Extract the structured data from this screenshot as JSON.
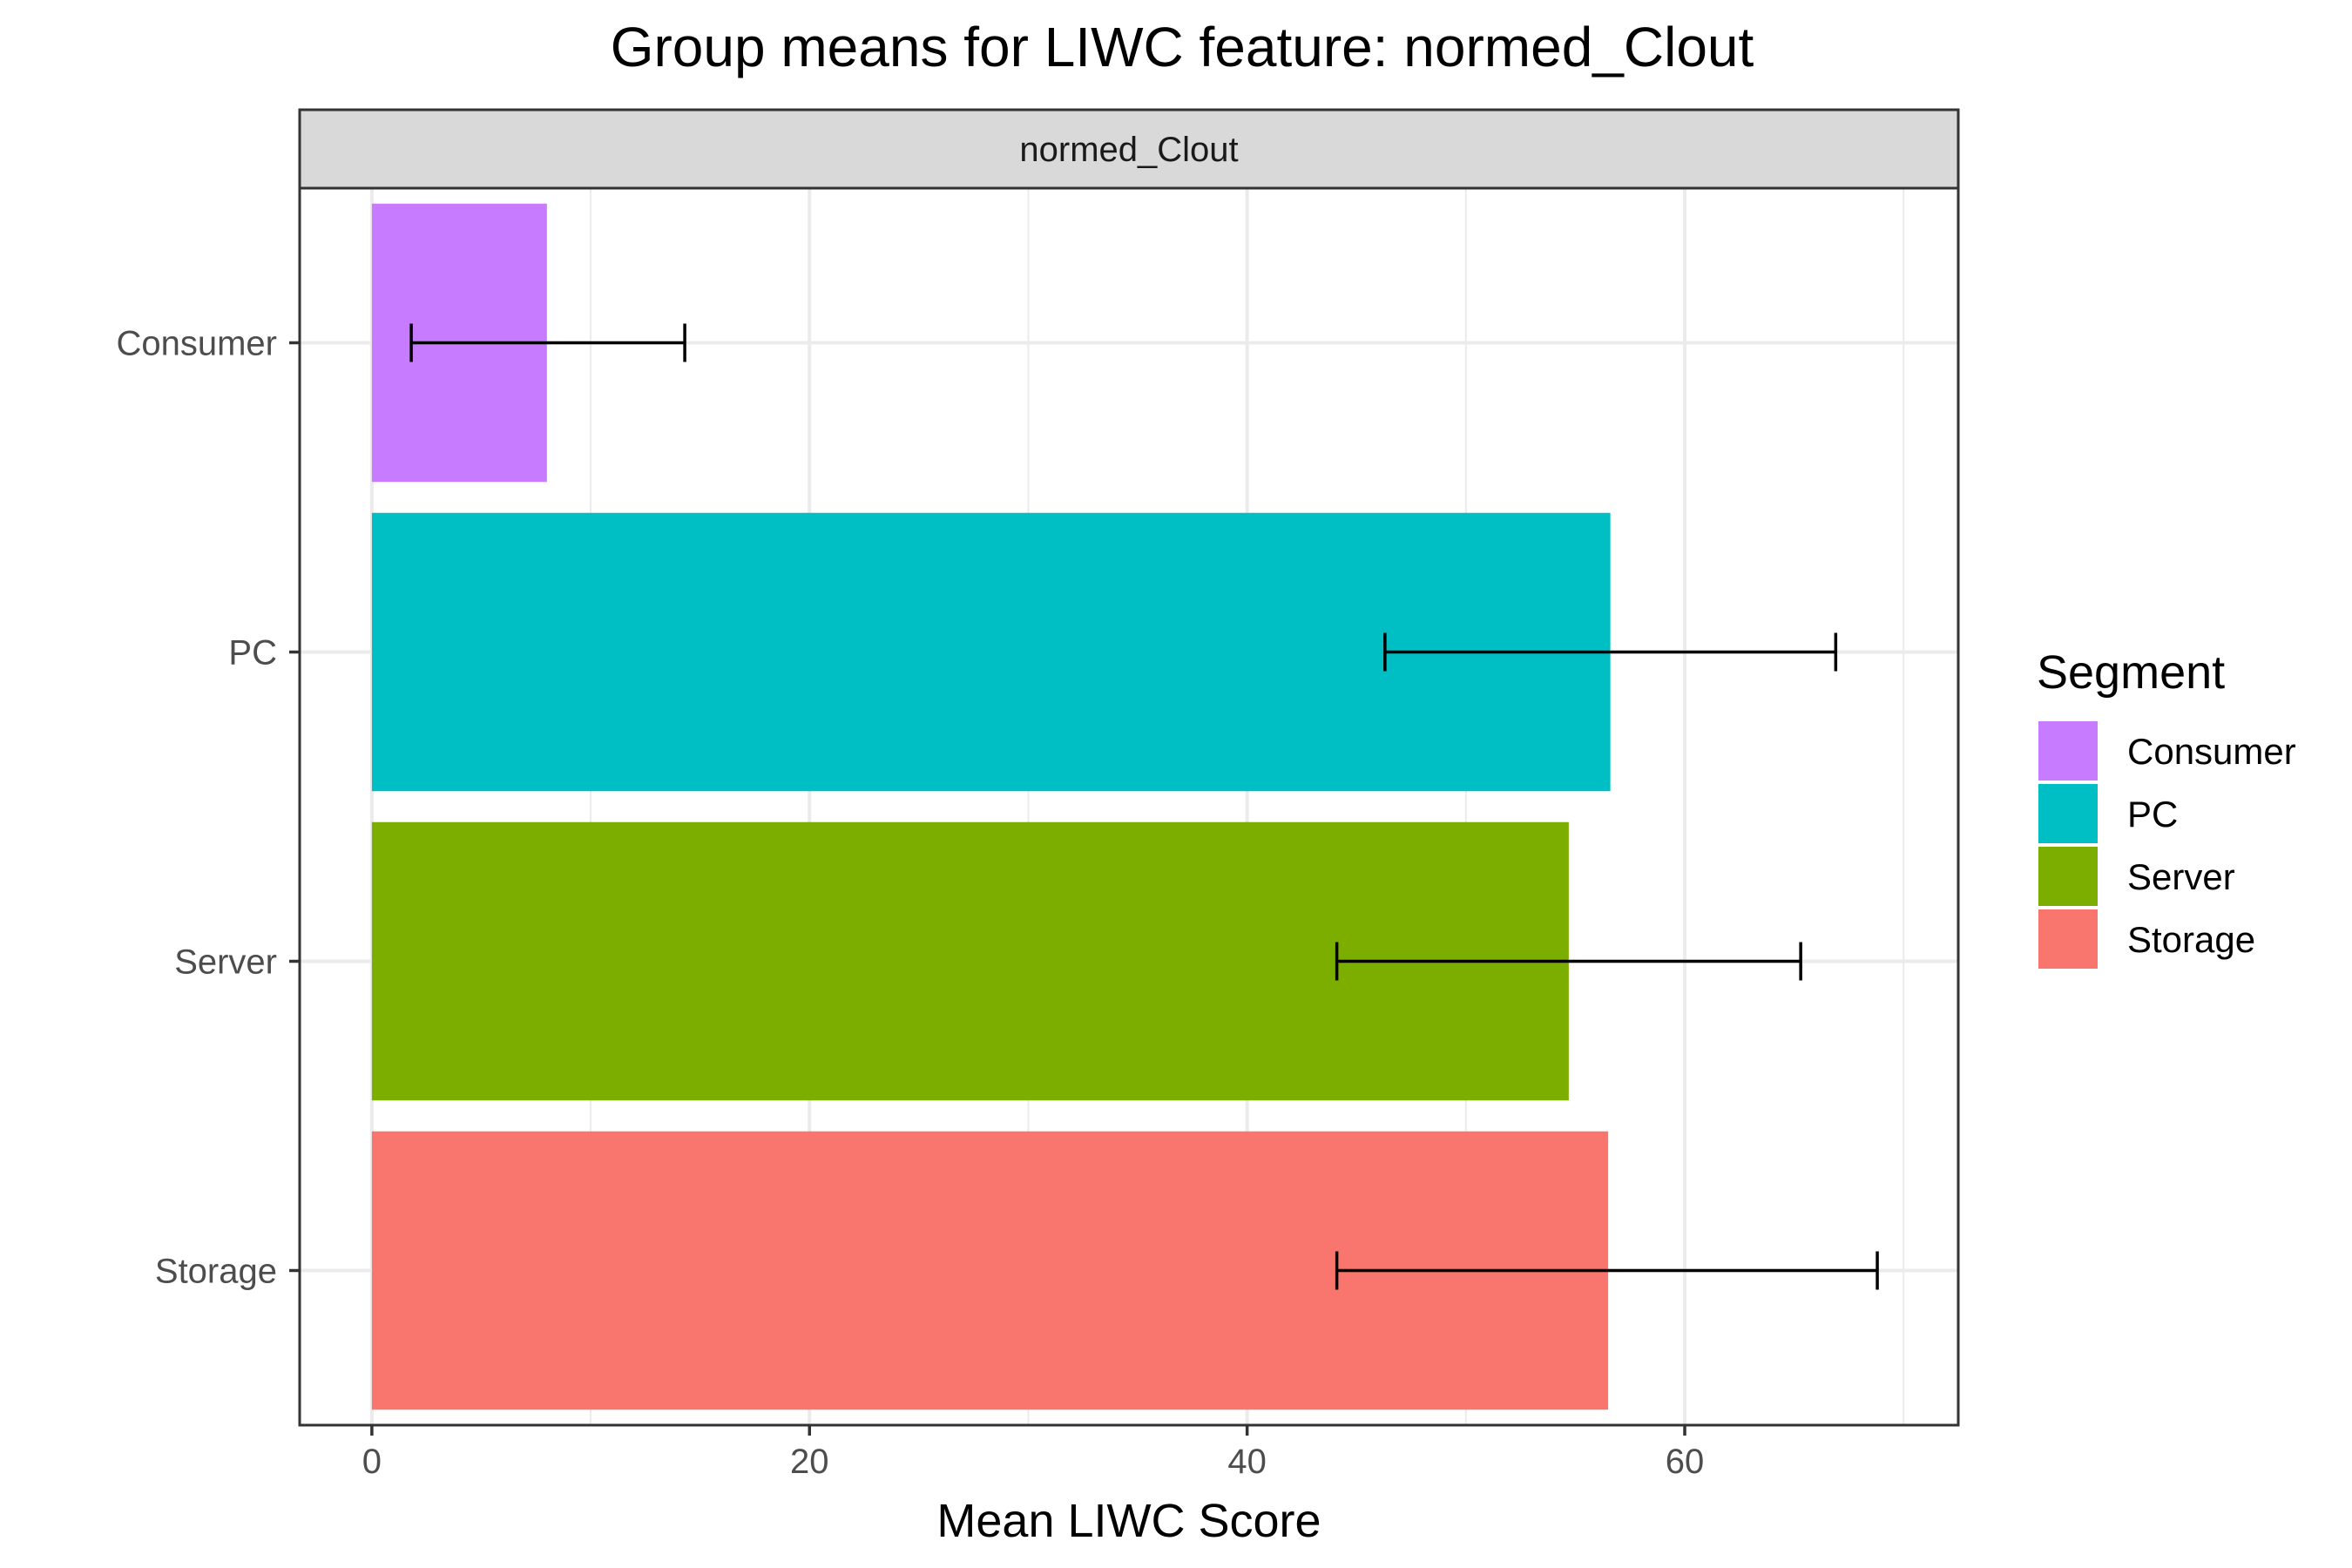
{
  "chart_data": {
    "type": "bar",
    "orientation": "horizontal",
    "title": "Group means for LIWC feature: normed_Clout",
    "facet_label": "normed_Clout",
    "xlabel": "Mean LIWC Score",
    "ylabel": "",
    "xlim": [
      -3.3,
      72.5
    ],
    "x_ticks": [
      0,
      20,
      40,
      60
    ],
    "grid": true,
    "categories": [
      "Consumer",
      "PC",
      "Server",
      "Storage"
    ],
    "values": [
      8.0,
      56.6,
      54.7,
      56.5
    ],
    "error_low": [
      1.8,
      46.3,
      44.1,
      44.1
    ],
    "error_high": [
      14.3,
      66.9,
      65.3,
      68.8
    ],
    "colors": [
      "#C77CFF",
      "#00BFC4",
      "#7CAE00",
      "#F8766D"
    ],
    "legend": {
      "title": "Segment",
      "position": "right",
      "entries": [
        "Consumer",
        "PC",
        "Server",
        "Storage"
      ]
    }
  }
}
